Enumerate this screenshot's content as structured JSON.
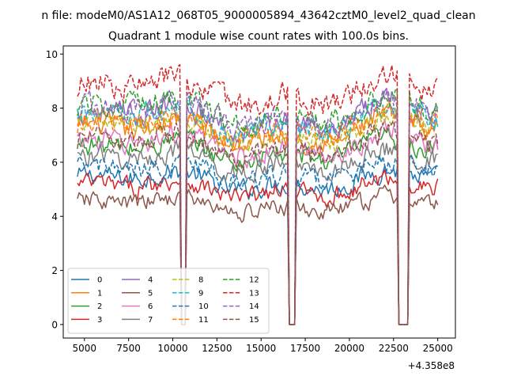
{
  "chart_data": {
    "type": "line",
    "suptitle": "n file: modeM0/AS1A12_068T05_9000005894_43642cztM0_level2_quad_clean",
    "title": "Quadrant 1 module wise count rates with 100.0s bins.",
    "xlabel": "",
    "ylabel": "",
    "x_offset_label": "+4.358e8",
    "xlim": [
      3800,
      26000
    ],
    "ylim": [
      -0.5,
      10.3
    ],
    "xticks": [
      5000,
      7500,
      10000,
      12500,
      15000,
      17500,
      20000,
      22500,
      25000
    ],
    "xtick_labels": [
      "5000",
      "7500",
      "10000",
      "12500",
      "15000",
      "17500",
      "20000",
      "22500",
      "25000"
    ],
    "yticks": [
      0,
      2,
      4,
      6,
      8,
      10
    ],
    "ytick_labels": [
      "0",
      "2",
      "4",
      "6",
      "8",
      "10"
    ],
    "x_range": [
      4600,
      25000
    ],
    "bin_width": 100,
    "gaps": [
      [
        10500,
        10700
      ],
      [
        16600,
        16900
      ],
      [
        22800,
        23300
      ]
    ],
    "legend_position": "lower-left",
    "legend_ncol": 4,
    "series": [
      {
        "name": "0",
        "mean": 5.3,
        "color": "#1f77b4",
        "style": "solid"
      },
      {
        "name": "1",
        "mean": 7.1,
        "color": "#ff7f0e",
        "style": "solid"
      },
      {
        "name": "2",
        "mean": 6.4,
        "color": "#2ca02c",
        "style": "solid"
      },
      {
        "name": "3",
        "mean": 5.0,
        "color": "#d62728",
        "style": "solid"
      },
      {
        "name": "4",
        "mean": 7.6,
        "color": "#9467bd",
        "style": "solid"
      },
      {
        "name": "5",
        "mean": 4.4,
        "color": "#8c564b",
        "style": "solid"
      },
      {
        "name": "6",
        "mean": 6.6,
        "color": "#e377c2",
        "style": "solid"
      },
      {
        "name": "7",
        "mean": 6.0,
        "color": "#7f7f7f",
        "style": "solid"
      },
      {
        "name": "8",
        "mean": 7.2,
        "color": "#bcbd22",
        "style": "dashed"
      },
      {
        "name": "9",
        "mean": 7.5,
        "color": "#17becf",
        "style": "dashed"
      },
      {
        "name": "10",
        "mean": 5.6,
        "color": "#1f77b4",
        "style": "dashed"
      },
      {
        "name": "11",
        "mean": 7.3,
        "color": "#ff7f0e",
        "style": "dashed"
      },
      {
        "name": "12",
        "mean": 7.9,
        "color": "#2ca02c",
        "style": "dashed"
      },
      {
        "name": "13",
        "mean": 8.6,
        "color": "#d62728",
        "style": "dashed"
      },
      {
        "name": "14",
        "mean": 7.8,
        "color": "#9467bd",
        "style": "dashed"
      },
      {
        "name": "15",
        "mean": 6.6,
        "color": "#8c564b",
        "style": "dashed"
      }
    ]
  }
}
